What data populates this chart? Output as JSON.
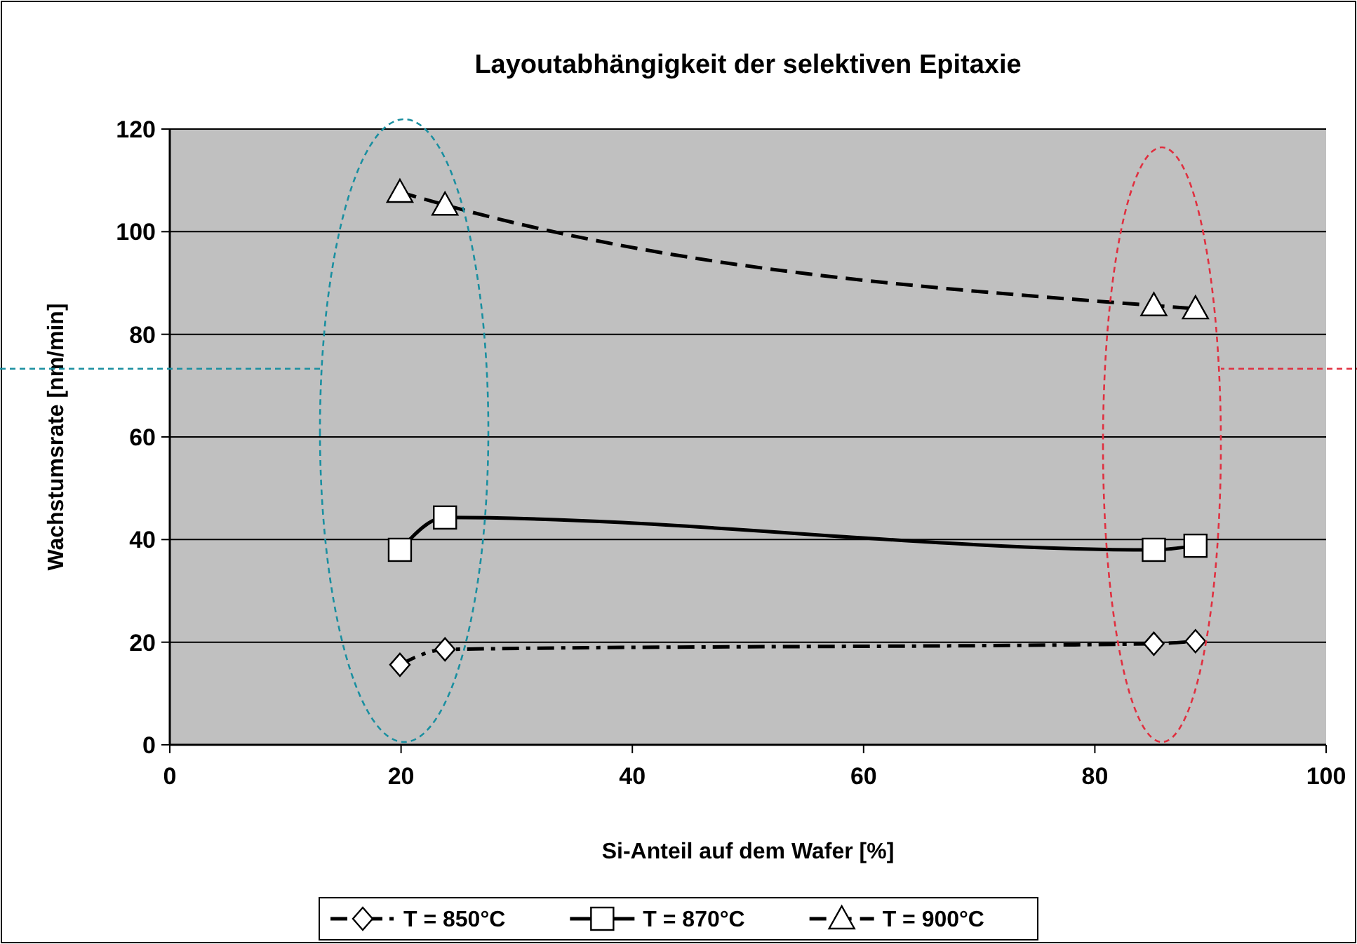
{
  "chart_data": {
    "type": "line",
    "title": "Layoutabhängigkeit der selektiven Epitaxie",
    "xlabel": "Si-Anteil auf dem Wafer [%]",
    "ylabel": "Wachstumsrate [nm/min]",
    "ref_lines": [
      {
        "axis": "y",
        "value": 73.3,
        "color": "#1a8fa0",
        "line_style": "dashed"
      },
      {
        "axis": "y",
        "value": 73.3,
        "color": "#e03040",
        "line_style": "dashed"
      }
    ],
    "xlim": [
      0,
      100
    ],
    "xticks": [
      0,
      20,
      40,
      60,
      80,
      100
    ],
    "ylim": [
      0,
      120
    ],
    "yticks": [
      0,
      20,
      40,
      60,
      80,
      100,
      120
    ],
    "grid": "y",
    "legend": "bottom",
    "series": [
      {
        "name": "T = 850°C",
        "color": "#000000",
        "marker": "diamond",
        "line_style": "dashdot",
        "x": [
          19.9,
          23.8,
          85.1,
          88.7
        ],
        "values": [
          15.6,
          18.6,
          19.7,
          20.2
        ]
      },
      {
        "name": "T = 870°C",
        "color": "#000000",
        "marker": "square",
        "line_style": "solid",
        "x": [
          19.9,
          23.8,
          85.1,
          88.7
        ],
        "values": [
          38,
          44.3,
          38,
          38.8
        ]
      },
      {
        "name": "T = 900°C",
        "color": "#000000",
        "marker": "triangle",
        "line_style": "dashed",
        "x": [
          19.9,
          23.8,
          85.1,
          88.7
        ],
        "values": [
          107.7,
          105.2,
          85.6,
          85
        ]
      }
    ]
  }
}
